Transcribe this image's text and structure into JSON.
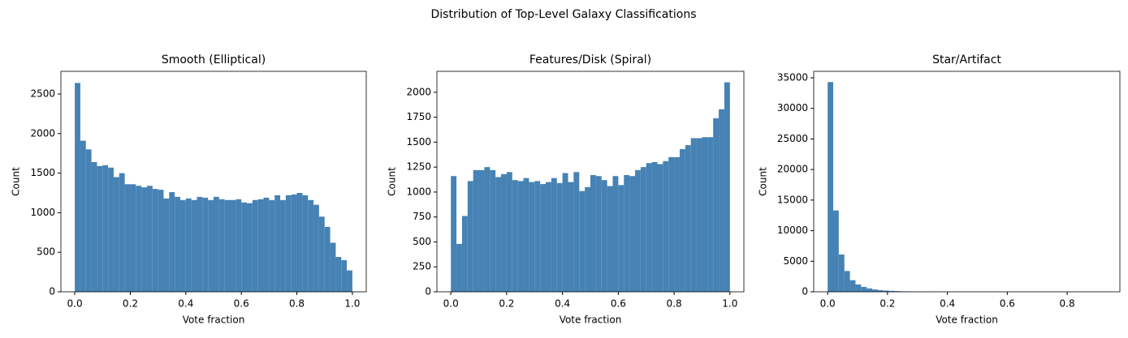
{
  "title": "Distribution of Top-Level Galaxy Classifications",
  "chart_data": [
    {
      "type": "histogram",
      "title": "Smooth (Elliptical)",
      "x_label": "Vote fraction",
      "y_label": "Count",
      "color": "#4682b4",
      "bins": [
        0,
        0.02,
        0.04,
        0.06,
        0.08,
        0.1,
        0.12,
        0.14,
        0.16,
        0.18,
        0.2,
        0.22,
        0.24,
        0.26,
        0.28,
        0.3,
        0.32,
        0.34,
        0.36,
        0.38,
        0.4,
        0.42,
        0.44,
        0.46,
        0.48,
        0.5,
        0.52,
        0.54,
        0.56,
        0.58,
        0.6,
        0.62,
        0.64,
        0.66,
        0.68,
        0.7,
        0.72,
        0.74,
        0.76,
        0.78,
        0.8,
        0.82,
        0.84,
        0.86,
        0.88,
        0.9,
        0.92,
        0.94,
        0.96,
        0.98,
        1.0
      ],
      "values": [
        2640,
        1910,
        1800,
        1640,
        1590,
        1600,
        1570,
        1450,
        1500,
        1360,
        1360,
        1340,
        1320,
        1340,
        1300,
        1290,
        1180,
        1260,
        1200,
        1160,
        1180,
        1160,
        1200,
        1190,
        1160,
        1200,
        1170,
        1160,
        1160,
        1170,
        1130,
        1120,
        1160,
        1170,
        1190,
        1160,
        1220,
        1160,
        1220,
        1230,
        1250,
        1220,
        1160,
        1100,
        950,
        820,
        620,
        440,
        400,
        270
      ],
      "xlim": [
        -0.05,
        1.05
      ],
      "ylim": [
        0,
        2787
      ],
      "xticks": [
        {
          "value": 0,
          "label": "0.0"
        },
        0.2,
        0.4,
        0.6,
        0.8,
        {
          "value": 1,
          "label": "1.0"
        }
      ],
      "yticks": [
        0,
        500,
        1000,
        1500,
        2000,
        2500
      ]
    },
    {
      "type": "histogram",
      "title": "Features/Disk (Spiral)",
      "x_label": "Vote fraction",
      "y_label": "Count",
      "color": "#4682b4",
      "bins": [
        0,
        0.02,
        0.04,
        0.06,
        0.08,
        0.1,
        0.12,
        0.14,
        0.16,
        0.18,
        0.2,
        0.22,
        0.24,
        0.26,
        0.28,
        0.3,
        0.32,
        0.34,
        0.36,
        0.38,
        0.4,
        0.42,
        0.44,
        0.46,
        0.48,
        0.5,
        0.52,
        0.54,
        0.56,
        0.58,
        0.6,
        0.62,
        0.64,
        0.66,
        0.68,
        0.7,
        0.72,
        0.74,
        0.76,
        0.78,
        0.8,
        0.82,
        0.84,
        0.86,
        0.88,
        0.9,
        0.92,
        0.94,
        0.96,
        0.98,
        1.0
      ],
      "values": [
        1160,
        480,
        760,
        1110,
        1220,
        1220,
        1250,
        1220,
        1150,
        1180,
        1200,
        1120,
        1110,
        1140,
        1100,
        1110,
        1080,
        1100,
        1140,
        1090,
        1190,
        1100,
        1200,
        1010,
        1050,
        1170,
        1160,
        1120,
        1060,
        1160,
        1070,
        1170,
        1160,
        1220,
        1250,
        1290,
        1300,
        1280,
        1310,
        1350,
        1350,
        1430,
        1470,
        1540,
        1540,
        1550,
        1550,
        1740,
        1830,
        2100
      ],
      "xlim": [
        -0.05,
        1.05
      ],
      "ylim": [
        0,
        2210
      ],
      "xticks": [
        {
          "value": 0,
          "label": "0.0"
        },
        0.2,
        0.4,
        0.6,
        0.8,
        {
          "value": 1,
          "label": "1.0"
        }
      ],
      "yticks": [
        0,
        250,
        500,
        750,
        1000,
        1250,
        1500,
        1750,
        2000
      ]
    },
    {
      "type": "histogram",
      "title": "Star/Artifact",
      "x_label": "Vote fraction",
      "y_label": "Count",
      "color": "#4682b4",
      "bins": [
        0,
        0.0186,
        0.0372,
        0.0558,
        0.0744,
        0.093,
        0.1116,
        0.1302,
        0.1488,
        0.1674,
        0.186,
        0.2046,
        0.2232,
        0.2418,
        0.2604,
        0.279,
        0.2976,
        0.3162,
        0.3348,
        0.3534,
        0.372,
        0.3906,
        0.4092,
        0.4278,
        0.4464,
        0.465,
        0.4836,
        0.5022,
        0.5208,
        0.5394,
        0.558,
        0.5766,
        0.5952,
        0.6138,
        0.6324,
        0.651,
        0.6696,
        0.6882,
        0.7068,
        0.7254,
        0.744,
        0.7626,
        0.7812,
        0.7998,
        0.8184,
        0.837,
        0.8556,
        0.8742,
        0.8928,
        0.9114,
        0.93
      ],
      "values": [
        34300,
        13300,
        6100,
        3400,
        1900,
        1200,
        800,
        560,
        380,
        270,
        200,
        150,
        110,
        80,
        60,
        40,
        30,
        20,
        15,
        10,
        8,
        6,
        5,
        4,
        3,
        3,
        2,
        2,
        1,
        1,
        1,
        1,
        1,
        0,
        0,
        1,
        0,
        0,
        0,
        0,
        0,
        0,
        0,
        0,
        0,
        0,
        0,
        0,
        0,
        1
      ],
      "xlim": [
        -0.0465,
        0.976
      ],
      "ylim": [
        0,
        36061
      ],
      "xticks": [
        {
          "value": 0,
          "label": "0.0"
        },
        0.2,
        0.4,
        0.6,
        0.8
      ],
      "yticks": [
        0,
        5000,
        10000,
        15000,
        20000,
        25000,
        30000,
        35000
      ]
    }
  ]
}
